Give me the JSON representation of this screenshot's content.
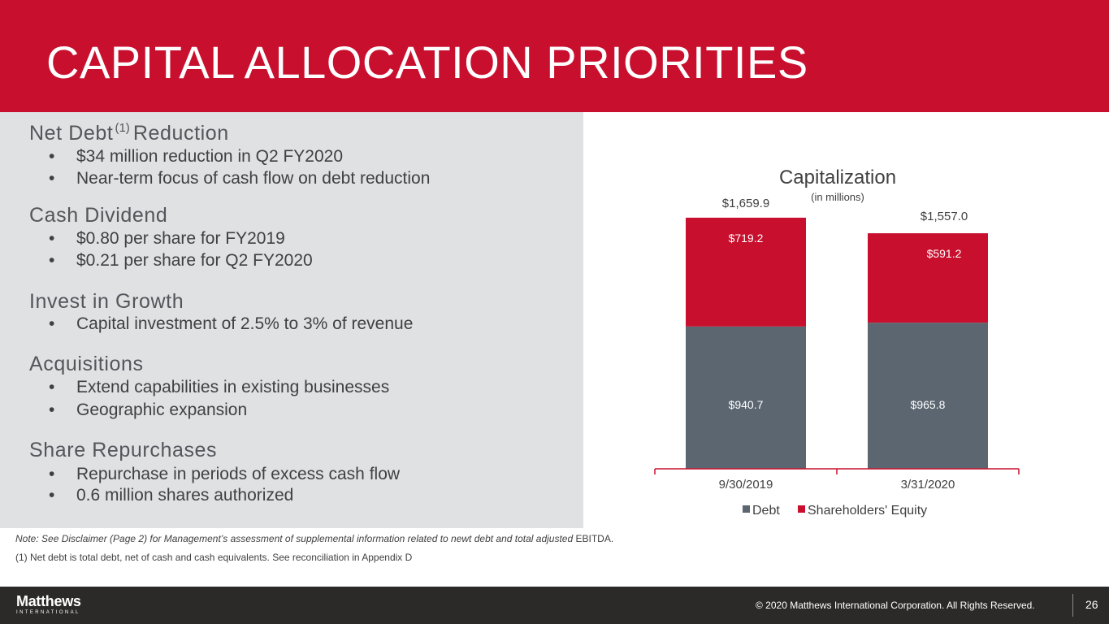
{
  "title": "CAPITAL ALLOCATION PRIORITIES",
  "sections": [
    {
      "heading": "Net Debt",
      "sup": "(1)",
      "heading_suffix": "Reduction",
      "bullets": [
        "$34 million reduction in Q2 FY2020",
        "Near-term focus of cash flow on debt reduction"
      ]
    },
    {
      "heading": "Cash Dividend",
      "bullets": [
        "$0.80 per share for FY2019",
        "$0.21 per share for Q2 FY2020"
      ]
    },
    {
      "heading": "Invest in Growth",
      "bullets": [
        "Capital investment of 2.5% to 3% of revenue"
      ]
    },
    {
      "heading": "Acquisitions",
      "bullets": [
        "Extend capabilities in existing businesses",
        "Geographic expansion"
      ]
    },
    {
      "heading": "Share Repurchases",
      "bullets": [
        "Repurchase in periods of excess cash flow",
        "0.6 million shares authorized"
      ]
    }
  ],
  "bullet_char": "•",
  "chart_data": {
    "type": "bar",
    "stacked": true,
    "title": "Capitalization",
    "subtitle": "(in millions)",
    "categories": [
      "9/30/2019",
      "3/31/2020"
    ],
    "series": [
      {
        "name": "Debt",
        "values": [
          940.7,
          965.8
        ],
        "labels": [
          "$940.7",
          "$965.8"
        ],
        "color": "#5b6670"
      },
      {
        "name": "Shareholders' Equity",
        "values": [
          719.2,
          591.2
        ],
        "labels": [
          "$719.2",
          "$591.2"
        ],
        "color": "#c8102e"
      }
    ],
    "totals": [
      "$1,659.9",
      "$1,557.0"
    ],
    "ylim": [
      0,
      1800
    ],
    "legend": "bottom",
    "grid": false
  },
  "note": {
    "italic": "Note: See Disclaimer (Page 2) for Management’s assessment of supplemental information related to newt debt and total adjusted",
    "plain": "EBITDA."
  },
  "footnote": "(1)   Net debt is total debt, net of cash and cash equivalents.  See reconciliation in Appendix D",
  "footer": {
    "logo": "Matthews",
    "logo_sub": "INTERNATIONAL",
    "copyright": "© 2020 Matthews International Corporation. All Rights Reserved.",
    "page_number": "26"
  },
  "colors": {
    "brand_red": "#c8102e",
    "debt_gray": "#5b6670",
    "panel_gray": "#dfe1e3",
    "footer_dark": "#2b2a29"
  }
}
